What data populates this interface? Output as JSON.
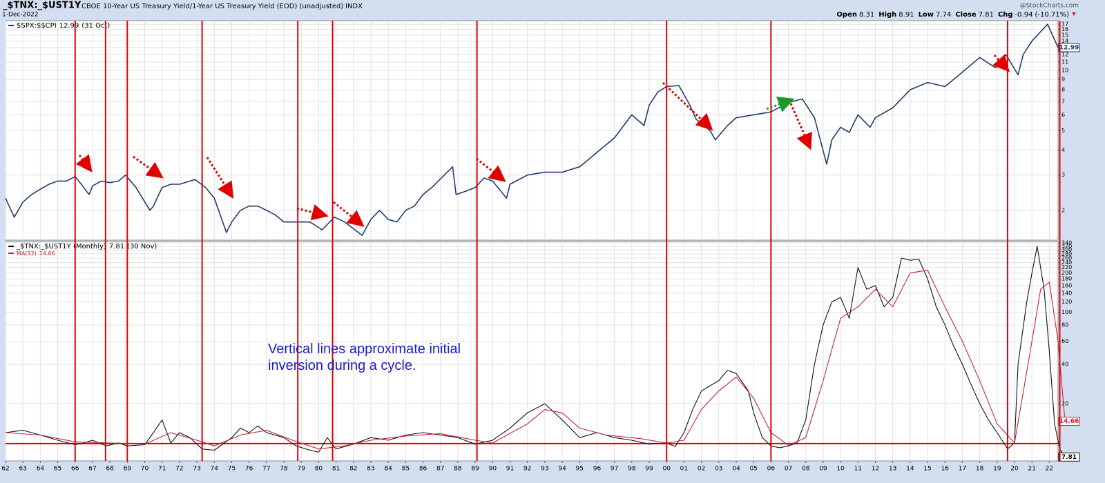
{
  "header": {
    "symbol": "_$TNX:_$UST1Y",
    "description": "CBOE 10-Year US Treasury Yield/1-Year US Treasury Yield (EOD) (unadjusted)",
    "exchange": "INDX",
    "date": "1-Dec-2022",
    "source": "@StockCharts.com",
    "quote": [
      {
        "label": "Open",
        "value": 8.31
      },
      {
        "label": "High",
        "value": 8.91
      },
      {
        "label": "Low",
        "value": 7.74
      },
      {
        "label": "Close",
        "value": 7.81
      },
      {
        "label": "Chg",
        "value": -0.94
      }
    ],
    "change_pct": "(-10.71%)"
  },
  "annotation": "Vertical lines approximate initial inversion during a cycle.",
  "inversion_lines": [
    1966.0,
    1967.75,
    1969.0,
    1973.3,
    1978.8,
    1980.8,
    1989.1,
    2000.0,
    2006.0,
    2019.6,
    2022.6
  ],
  "inversion_line_color": "#e00000",
  "chart_data": [
    {
      "type": "line",
      "log_scale": true,
      "grid": true,
      "xlim": [
        1962,
        2022.5
      ],
      "ylim": [
        1.42,
        17.7
      ],
      "yticks": [
        2,
        3,
        4,
        5,
        6,
        7,
        8,
        9,
        10,
        11,
        12,
        13,
        14,
        15,
        16,
        17
      ],
      "series": [
        {
          "name": "$SPX:$$CPI",
          "legend_date": "(31 Oct)",
          "color": "#1f3b6e",
          "x": [
            1962.0,
            1962.5,
            1963.0,
            1963.5,
            1964.0,
            1964.5,
            1965.0,
            1965.5,
            1966.0,
            1966.5,
            1966.8,
            1967.0,
            1967.5,
            1968.0,
            1968.5,
            1968.9,
            1969.5,
            1970.3,
            1970.5,
            1971.0,
            1971.5,
            1972.0,
            1972.9,
            1973.5,
            1974.0,
            1974.7,
            1975.0,
            1975.5,
            1976.0,
            1976.5,
            1977.0,
            1977.5,
            1978.0,
            1978.5,
            1979.0,
            1979.5,
            1980.2,
            1980.9,
            1981.5,
            1982.5,
            1983.0,
            1983.5,
            1984.0,
            1984.5,
            1985.0,
            1985.5,
            1986.0,
            1986.5,
            1987.7,
            1987.9,
            1988.5,
            1989.0,
            1989.5,
            1990.0,
            1990.8,
            1991.0,
            1992.0,
            1993.0,
            1994.0,
            1995.0,
            1996.0,
            1997.0,
            1998.0,
            1998.7,
            1999.0,
            1999.5,
            2000.0,
            2000.7,
            2001.3,
            2001.7,
            2002.5,
            2002.8,
            2003.5,
            2004.0,
            2005.0,
            2006.0,
            2007.0,
            2007.8,
            2008.5,
            2009.2,
            2009.5,
            2010.0,
            2010.5,
            2011.0,
            2011.7,
            2012.0,
            2013.0,
            2014.0,
            2015.0,
            2016.0,
            2017.0,
            2018.0,
            2018.9,
            2019.5,
            2020.2,
            2020.5,
            2021.0,
            2021.9,
            2022.5,
            2022.75
          ],
          "values": [
            2.3,
            1.85,
            2.2,
            2.4,
            2.55,
            2.7,
            2.8,
            2.8,
            2.95,
            2.6,
            2.4,
            2.65,
            2.8,
            2.75,
            2.8,
            3.0,
            2.6,
            2.0,
            2.1,
            2.6,
            2.7,
            2.7,
            2.85,
            2.6,
            2.3,
            1.55,
            1.75,
            2.0,
            2.1,
            2.1,
            2.0,
            1.9,
            1.75,
            1.75,
            1.75,
            1.75,
            1.6,
            1.85,
            1.75,
            1.5,
            1.8,
            2.0,
            1.8,
            1.75,
            2.0,
            2.1,
            2.4,
            2.6,
            3.3,
            2.4,
            2.5,
            2.6,
            2.9,
            2.8,
            2.3,
            2.7,
            3.0,
            3.1,
            3.1,
            3.3,
            3.9,
            4.6,
            6.0,
            5.3,
            6.7,
            7.8,
            8.3,
            8.4,
            6.8,
            5.7,
            5.0,
            4.5,
            5.3,
            5.8,
            6.0,
            6.2,
            6.9,
            7.2,
            5.8,
            3.4,
            4.5,
            5.2,
            4.9,
            6.0,
            5.2,
            5.8,
            6.5,
            8.0,
            8.7,
            8.3,
            9.8,
            11.6,
            10.3,
            12.0,
            9.5,
            12.0,
            14.0,
            17.0,
            13.0,
            12.99
          ]
        }
      ]
    },
    {
      "type": "line",
      "log_scale": true,
      "grid": true,
      "xlim": [
        1962,
        2022.5
      ],
      "ylim": [
        7.29,
        348
      ],
      "reference_line": 9.9,
      "reference_color": "#e00000",
      "yticks": [
        20,
        40,
        60,
        80,
        100,
        120,
        140,
        160,
        180,
        200,
        220,
        240,
        260,
        280,
        300,
        320,
        340
      ],
      "xticks": [
        {
          "value": 1962,
          "label": "62"
        },
        {
          "value": 1963,
          "label": "63"
        },
        {
          "value": 1964,
          "label": "64"
        },
        {
          "value": 1965,
          "label": "65"
        },
        {
          "value": 1966,
          "label": "66"
        },
        {
          "value": 1967,
          "label": "67"
        },
        {
          "value": 1968,
          "label": "68"
        },
        {
          "value": 1969,
          "label": "69"
        },
        {
          "value": 1970,
          "label": "70"
        },
        {
          "value": 1971,
          "label": "71"
        },
        {
          "value": 1972,
          "label": "72"
        },
        {
          "value": 1973,
          "label": "73"
        },
        {
          "value": 1974,
          "label": "74"
        },
        {
          "value": 1975,
          "label": "75"
        },
        {
          "value": 1976,
          "label": "76"
        },
        {
          "value": 1977,
          "label": "77"
        },
        {
          "value": 1978,
          "label": "78"
        },
        {
          "value": 1979,
          "label": "79"
        },
        {
          "value": 1980,
          "label": "80"
        },
        {
          "value": 1981,
          "label": "81"
        },
        {
          "value": 1982,
          "label": "82"
        },
        {
          "value": 1983,
          "label": "83"
        },
        {
          "value": 1984,
          "label": "84"
        },
        {
          "value": 1985,
          "label": "85"
        },
        {
          "value": 1986,
          "label": "86"
        },
        {
          "value": 1987,
          "label": "87"
        },
        {
          "value": 1988,
          "label": "88"
        },
        {
          "value": 1989,
          "label": "89"
        },
        {
          "value": 1990,
          "label": "90"
        },
        {
          "value": 1991,
          "label": "91"
        },
        {
          "value": 1992,
          "label": "92"
        },
        {
          "value": 1993,
          "label": "93"
        },
        {
          "value": 1994,
          "label": "94"
        },
        {
          "value": 1995,
          "label": "95"
        },
        {
          "value": 1996,
          "label": "96"
        },
        {
          "value": 1997,
          "label": "97"
        },
        {
          "value": 1998,
          "label": "98"
        },
        {
          "value": 1999,
          "label": "99"
        },
        {
          "value": 2000,
          "label": "00"
        },
        {
          "value": 2001,
          "label": "01"
        },
        {
          "value": 2002,
          "label": "02"
        },
        {
          "value": 2003,
          "label": "03"
        },
        {
          "value": 2004,
          "label": "04"
        },
        {
          "value": 2005,
          "label": "05"
        },
        {
          "value": 2006,
          "label": "06"
        },
        {
          "value": 2007,
          "label": "07"
        },
        {
          "value": 2008,
          "label": "08"
        },
        {
          "value": 2009,
          "label": "09"
        },
        {
          "value": 2010,
          "label": "10"
        },
        {
          "value": 2011,
          "label": "11"
        },
        {
          "value": 2012,
          "label": "12"
        },
        {
          "value": 2013,
          "label": "13"
        },
        {
          "value": 2014,
          "label": "14"
        },
        {
          "value": 2015,
          "label": "15"
        },
        {
          "value": 2016,
          "label": "16"
        },
        {
          "value": 2017,
          "label": "17"
        },
        {
          "value": 2018,
          "label": "18"
        },
        {
          "value": 2019,
          "label": "19"
        },
        {
          "value": 2020,
          "label": "20"
        },
        {
          "value": 2021,
          "label": "21"
        },
        {
          "value": 2022,
          "label": "22"
        }
      ],
      "series": [
        {
          "name": "_$TNX:_$UST1Y (Monthly)",
          "legend_date": "(30 Nov)",
          "color": "#111111",
          "x": [
            1962.0,
            1963.0,
            1964.0,
            1965.0,
            1966.0,
            1966.5,
            1967.0,
            1967.8,
            1968.5,
            1969.0,
            1970.0,
            1970.5,
            1971.0,
            1971.5,
            1972.0,
            1972.6,
            1973.3,
            1974.0,
            1975.0,
            1975.5,
            1976.0,
            1976.5,
            1977.0,
            1978.0,
            1978.7,
            1979.5,
            1980.0,
            1980.5,
            1981.0,
            1982.0,
            1983.0,
            1984.0,
            1985.0,
            1986.0,
            1987.0,
            1988.0,
            1989.0,
            1990.0,
            1991.0,
            1992.0,
            1993.0,
            1994.0,
            1995.0,
            1996.0,
            1997.0,
            1998.0,
            1999.0,
            2000.0,
            2000.5,
            2001.0,
            2001.5,
            2002.0,
            2003.0,
            2003.5,
            2004.0,
            2004.7,
            2005.0,
            2005.5,
            2006.0,
            2006.5,
            2007.0,
            2007.5,
            2008.0,
            2008.5,
            2009.0,
            2009.5,
            2010.0,
            2010.5,
            2011.0,
            2011.5,
            2012.0,
            2012.5,
            2013.0,
            2013.5,
            2014.0,
            2014.5,
            2015.0,
            2015.5,
            2016.0,
            2016.5,
            2017.0,
            2017.5,
            2018.0,
            2018.5,
            2019.0,
            2019.6,
            2020.0,
            2020.2,
            2020.7,
            2021.0,
            2021.3,
            2021.7,
            2022.0,
            2022.3,
            2022.6,
            2022.9
          ],
          "values": [
            12,
            12.5,
            11.5,
            10.5,
            9.7,
            10,
            10.5,
            9.5,
            10,
            9.5,
            9.7,
            12,
            15,
            10,
            12,
            11,
            9,
            8.8,
            11,
            13,
            12,
            13.5,
            12,
            11,
            9.5,
            8.8,
            8.5,
            11,
            9,
            9.8,
            11,
            10.5,
            11.5,
            12,
            11.5,
            11,
            9.8,
            10.5,
            13,
            17,
            20,
            15,
            11,
            12,
            11,
            10.5,
            9.8,
            10,
            9.4,
            12,
            18,
            25,
            30,
            36,
            34,
            25,
            17,
            11,
            9.5,
            9.2,
            9.5,
            10,
            15,
            40,
            80,
            120,
            130,
            90,
            220,
            150,
            160,
            110,
            130,
            260,
            250,
            255,
            180,
            110,
            80,
            55,
            40,
            28,
            20,
            15,
            12,
            9,
            10,
            40,
            120,
            200,
            320,
            150,
            50,
            14,
            9,
            7.81
          ]
        },
        {
          "name": "MA(12)",
          "color": "#c8223a",
          "x": [
            1962.0,
            1964.0,
            1966.0,
            1968.0,
            1970.0,
            1971.5,
            1973.0,
            1974.0,
            1975.5,
            1977.0,
            1978.5,
            1980.0,
            1981.5,
            1983.0,
            1985.0,
            1987.0,
            1989.0,
            1990.0,
            1992.0,
            1993.0,
            1994.0,
            1995.0,
            1996.5,
            1998.5,
            2000.0,
            2001.0,
            2002.0,
            2003.0,
            2004.0,
            2005.0,
            2006.0,
            2007.0,
            2008.0,
            2009.0,
            2010.0,
            2011.0,
            2012.0,
            2013.0,
            2014.0,
            2015.0,
            2016.0,
            2017.0,
            2018.0,
            2019.0,
            2020.0,
            2021.0,
            2021.5,
            2022.0,
            2022.5,
            2022.9
          ],
          "values": [
            12,
            11.5,
            10.2,
            10,
            9.8,
            12,
            10.5,
            9.5,
            11.5,
            12.5,
            10.5,
            9,
            9.5,
            10.5,
            11.3,
            11.8,
            10.5,
            10,
            14,
            18,
            17,
            13,
            11.5,
            10.8,
            10,
            10.5,
            18,
            25,
            32,
            22,
            12,
            9.6,
            11,
            30,
            90,
            110,
            150,
            110,
            200,
            210,
            110,
            60,
            30,
            14,
            10,
            60,
            150,
            170,
            60,
            14.66
          ]
        }
      ]
    }
  ]
}
